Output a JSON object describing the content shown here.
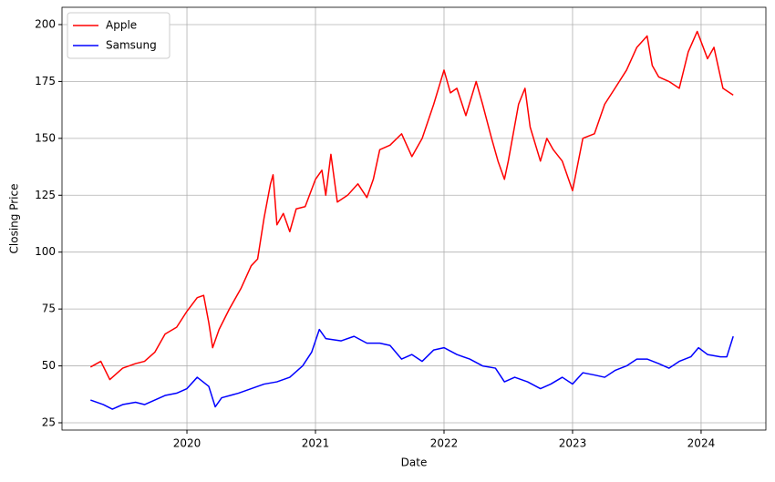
{
  "chart_data": {
    "type": "line",
    "xlabel": "Date",
    "ylabel": "Closing Price",
    "xlim": [
      2019.028,
      2024.504
    ],
    "xticks": [
      2020,
      2021,
      2022,
      2023,
      2024
    ],
    "ylim": [
      21.8,
      207.6
    ],
    "yticks": [
      25,
      50,
      75,
      100,
      125,
      150,
      175,
      200
    ],
    "grid": true,
    "legend": "upper-left",
    "series": [
      {
        "name": "Apple",
        "color": "#ff0000",
        "x": [
          2019.25,
          2019.33,
          2019.4,
          2019.5,
          2019.6,
          2019.67,
          2019.75,
          2019.83,
          2019.92,
          2020.0,
          2020.08,
          2020.13,
          2020.17,
          2020.2,
          2020.25,
          2020.33,
          2020.42,
          2020.5,
          2020.55,
          2020.6,
          2020.65,
          2020.67,
          2020.7,
          2020.75,
          2020.8,
          2020.85,
          2020.92,
          2021.0,
          2021.05,
          2021.08,
          2021.12,
          2021.17,
          2021.25,
          2021.33,
          2021.4,
          2021.45,
          2021.5,
          2021.58,
          2021.67,
          2021.75,
          2021.83,
          2021.92,
          2022.0,
          2022.05,
          2022.1,
          2022.17,
          2022.25,
          2022.3,
          2022.37,
          2022.42,
          2022.47,
          2022.5,
          2022.58,
          2022.63,
          2022.67,
          2022.75,
          2022.8,
          2022.85,
          2022.92,
          2023.0,
          2023.08,
          2023.17,
          2023.25,
          2023.33,
          2023.42,
          2023.5,
          2023.58,
          2023.62,
          2023.67,
          2023.75,
          2023.83,
          2023.9,
          2023.97,
          2024.05,
          2024.1,
          2024.17,
          2024.25
        ],
        "values": [
          49.5,
          52,
          44,
          49,
          51,
          52,
          56,
          64,
          67,
          74,
          80,
          81,
          69,
          58,
          66,
          75,
          84,
          94,
          97,
          115,
          130,
          134,
          112,
          117,
          109,
          119,
          120,
          132,
          136,
          125,
          143,
          122,
          125,
          130,
          124,
          132,
          145,
          147,
          152,
          142,
          150,
          165,
          180,
          170,
          172,
          160,
          175,
          165,
          150,
          140,
          132,
          140,
          165,
          172,
          155,
          140,
          150,
          145,
          140,
          127,
          150,
          152,
          165,
          172,
          180,
          190,
          195,
          182,
          177,
          175,
          172,
          188,
          197,
          185,
          190,
          172,
          169
        ]
      },
      {
        "name": "Samsung",
        "color": "#0000ff",
        "x": [
          2019.25,
          2019.35,
          2019.42,
          2019.5,
          2019.6,
          2019.67,
          2019.75,
          2019.83,
          2019.92,
          2020.0,
          2020.08,
          2020.17,
          2020.22,
          2020.27,
          2020.4,
          2020.5,
          2020.6,
          2020.7,
          2020.8,
          2020.9,
          2020.97,
          2021.03,
          2021.08,
          2021.2,
          2021.3,
          2021.4,
          2021.5,
          2021.58,
          2021.67,
          2021.75,
          2021.83,
          2021.92,
          2022.0,
          2022.1,
          2022.2,
          2022.3,
          2022.4,
          2022.47,
          2022.55,
          2022.65,
          2022.75,
          2022.83,
          2022.92,
          2023.0,
          2023.08,
          2023.17,
          2023.25,
          2023.33,
          2023.42,
          2023.5,
          2023.58,
          2023.67,
          2023.75,
          2023.83,
          2023.92,
          2023.98,
          2024.05,
          2024.15,
          2024.2,
          2024.25
        ],
        "values": [
          35,
          33,
          31,
          33,
          34,
          33,
          35,
          37,
          38,
          40,
          45,
          41,
          32,
          36,
          38,
          40,
          42,
          43,
          45,
          50,
          56,
          66,
          62,
          61,
          63,
          60,
          60,
          59,
          53,
          55,
          52,
          57,
          58,
          55,
          53,
          50,
          49,
          43,
          45,
          43,
          40,
          42,
          45,
          42,
          47,
          46,
          45,
          48,
          50,
          53,
          53,
          51,
          49,
          52,
          54,
          58,
          55,
          54,
          54,
          63
        ]
      }
    ]
  }
}
